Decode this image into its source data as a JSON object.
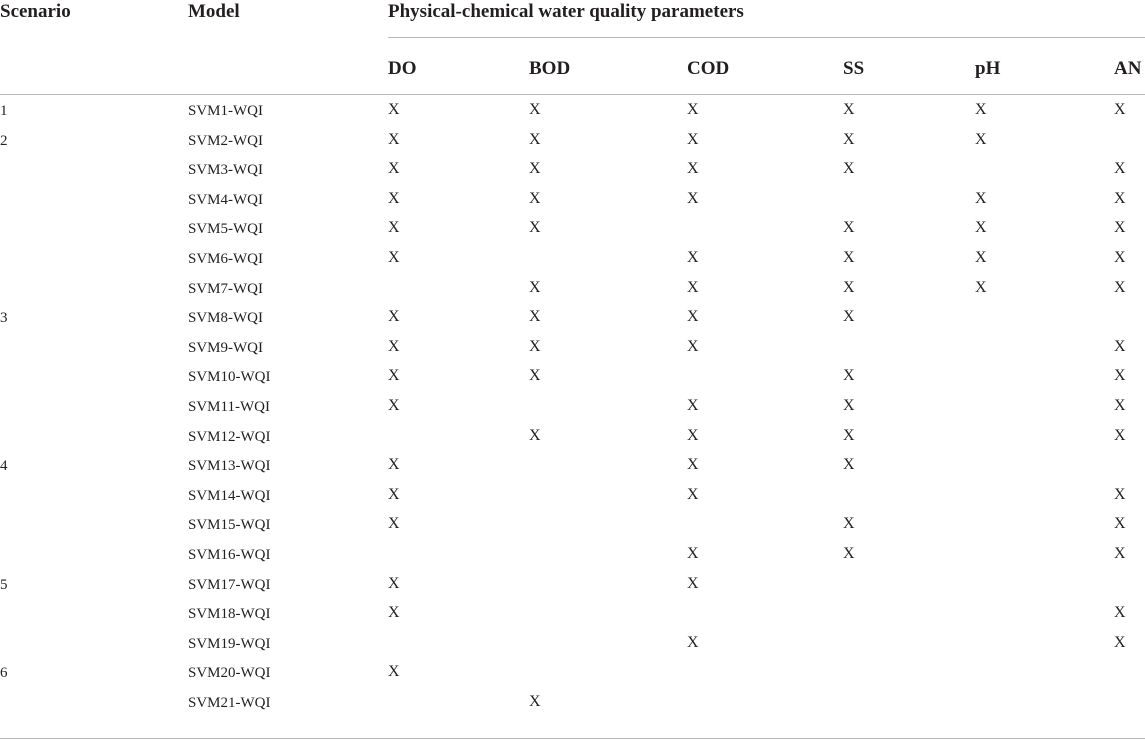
{
  "table": {
    "headers": {
      "scenario": "Scenario",
      "model": "Model",
      "group": "Physical-chemical water quality parameters",
      "params": [
        "DO",
        "BOD",
        "COD",
        "SS",
        "pH",
        "AN"
      ]
    },
    "mark_symbol": "X",
    "rows": [
      {
        "scenario": "1",
        "model": "SVM1-WQI",
        "marks": [
          true,
          true,
          true,
          true,
          true,
          true
        ]
      },
      {
        "scenario": "2",
        "model": "SVM2-WQI",
        "marks": [
          true,
          true,
          true,
          true,
          true,
          false
        ]
      },
      {
        "scenario": "",
        "model": "SVM3-WQI",
        "marks": [
          true,
          true,
          true,
          true,
          false,
          true
        ]
      },
      {
        "scenario": "",
        "model": "SVM4-WQI",
        "marks": [
          true,
          true,
          true,
          false,
          true,
          true
        ]
      },
      {
        "scenario": "",
        "model": "SVM5-WQI",
        "marks": [
          true,
          true,
          false,
          true,
          true,
          true
        ]
      },
      {
        "scenario": "",
        "model": "SVM6-WQI",
        "marks": [
          true,
          false,
          true,
          true,
          true,
          true
        ]
      },
      {
        "scenario": "",
        "model": "SVM7-WQI",
        "marks": [
          false,
          true,
          true,
          true,
          true,
          true
        ]
      },
      {
        "scenario": "3",
        "model": "SVM8-WQI",
        "marks": [
          true,
          true,
          true,
          true,
          false,
          false
        ]
      },
      {
        "scenario": "",
        "model": "SVM9-WQI",
        "marks": [
          true,
          true,
          true,
          false,
          false,
          true
        ]
      },
      {
        "scenario": "",
        "model": "SVM10-WQI",
        "marks": [
          true,
          true,
          false,
          true,
          false,
          true
        ]
      },
      {
        "scenario": "",
        "model": "SVM11-WQI",
        "marks": [
          true,
          false,
          true,
          true,
          false,
          true
        ]
      },
      {
        "scenario": "",
        "model": "SVM12-WQI",
        "marks": [
          false,
          true,
          true,
          true,
          false,
          true
        ]
      },
      {
        "scenario": "4",
        "model": "SVM13-WQI",
        "marks": [
          true,
          false,
          true,
          true,
          false,
          false
        ]
      },
      {
        "scenario": "",
        "model": "SVM14-WQI",
        "marks": [
          true,
          false,
          true,
          false,
          false,
          true
        ]
      },
      {
        "scenario": "",
        "model": "SVM15-WQI",
        "marks": [
          true,
          false,
          false,
          true,
          false,
          true
        ]
      },
      {
        "scenario": "",
        "model": "SVM16-WQI",
        "marks": [
          false,
          false,
          true,
          true,
          false,
          true
        ]
      },
      {
        "scenario": "5",
        "model": "SVM17-WQI",
        "marks": [
          true,
          false,
          true,
          false,
          false,
          false
        ]
      },
      {
        "scenario": "",
        "model": "SVM18-WQI",
        "marks": [
          true,
          false,
          false,
          false,
          false,
          true
        ]
      },
      {
        "scenario": "",
        "model": "SVM19-WQI",
        "marks": [
          false,
          false,
          true,
          false,
          false,
          true
        ]
      },
      {
        "scenario": "6",
        "model": "SVM20-WQI",
        "marks": [
          true,
          false,
          false,
          false,
          false,
          false
        ]
      },
      {
        "scenario": "",
        "model": "SVM21-WQI",
        "marks": [
          false,
          true,
          false,
          false,
          false,
          false
        ]
      }
    ]
  }
}
